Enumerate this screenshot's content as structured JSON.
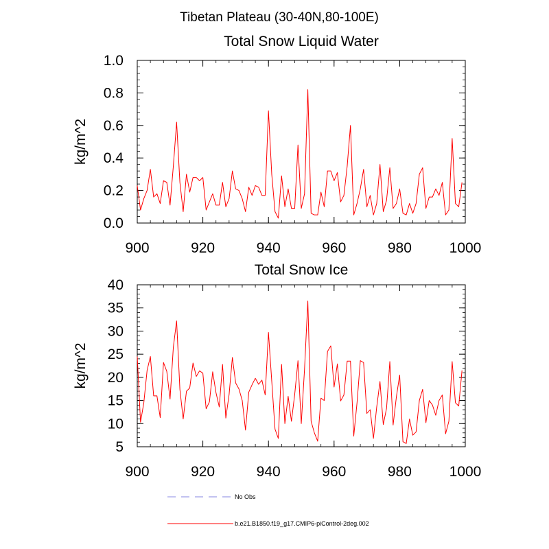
{
  "figure": {
    "title": "Tibetan Plateau (30-40N,80-100E)"
  },
  "legend": {
    "placement": "bottom-center",
    "items": [
      {
        "label": "No Obs",
        "style": "dashed",
        "color": "#9e9ee8"
      },
      {
        "label": "b.e21.B1850.f19_g17.CMIP6-piControl-2deg.002",
        "style": "solid",
        "color": "#ff0000"
      }
    ]
  },
  "chart_data": [
    {
      "type": "line",
      "title": "Total Snow Liquid Water",
      "xlabel": "",
      "ylabel": "kg/m^2",
      "xlim": [
        900,
        1000
      ],
      "ylim": [
        0.0,
        1.0
      ],
      "xticks": [
        900,
        920,
        940,
        960,
        980,
        1000
      ],
      "yticks": [
        0.0,
        0.2,
        0.4,
        0.6,
        0.8,
        1.0
      ],
      "ytick_labels": [
        "0.0",
        "0.2",
        "0.4",
        "0.6",
        "0.8",
        "1.0"
      ],
      "grid": false,
      "series": [
        {
          "name": "b.e21.B1850.f19_g17.CMIP6-piControl-2deg.002",
          "color": "#ff0000",
          "x_start": 900,
          "x_step": 1,
          "values": [
            0.23,
            0.08,
            0.15,
            0.2,
            0.33,
            0.16,
            0.18,
            0.12,
            0.26,
            0.25,
            0.11,
            0.35,
            0.62,
            0.25,
            0.07,
            0.3,
            0.19,
            0.28,
            0.28,
            0.26,
            0.28,
            0.08,
            0.13,
            0.18,
            0.11,
            0.11,
            0.25,
            0.1,
            0.15,
            0.32,
            0.21,
            0.2,
            0.15,
            0.07,
            0.22,
            0.17,
            0.23,
            0.22,
            0.17,
            0.17,
            0.69,
            0.3,
            0.07,
            0.03,
            0.29,
            0.1,
            0.21,
            0.09,
            0.09,
            0.48,
            0.09,
            0.18,
            0.82,
            0.06,
            0.05,
            0.05,
            0.19,
            0.1,
            0.32,
            0.32,
            0.26,
            0.31,
            0.13,
            0.17,
            0.35,
            0.6,
            0.05,
            0.12,
            0.21,
            0.33,
            0.1,
            0.17,
            0.05,
            0.12,
            0.36,
            0.07,
            0.14,
            0.34,
            0.09,
            0.12,
            0.21,
            0.06,
            0.05,
            0.12,
            0.06,
            0.12,
            0.3,
            0.34,
            0.09,
            0.16,
            0.16,
            0.21,
            0.17,
            0.25,
            0.05,
            0.08,
            0.52,
            0.12,
            0.1,
            0.25
          ]
        }
      ]
    },
    {
      "type": "line",
      "title": "Total Snow Ice",
      "xlabel": "",
      "ylabel": "kg/m^2",
      "xlim": [
        900,
        1000
      ],
      "ylim": [
        5,
        40
      ],
      "xticks": [
        900,
        920,
        940,
        960,
        980,
        1000
      ],
      "yticks": [
        5,
        10,
        15,
        20,
        25,
        30,
        35,
        40
      ],
      "ytick_labels": [
        "5",
        "10",
        "15",
        "20",
        "25",
        "30",
        "35",
        "40"
      ],
      "grid": false,
      "series": [
        {
          "name": "b.e21.B1850.f19_g17.CMIP6-piControl-2deg.002",
          "color": "#ff0000",
          "x_start": 900,
          "x_step": 1,
          "values": [
            24.5,
            10.3,
            14.5,
            21.5,
            24.5,
            16.0,
            16.0,
            11.3,
            23.2,
            21.3,
            15.3,
            26.5,
            32.2,
            17.4,
            11.0,
            17.0,
            17.7,
            23.1,
            20.2,
            21.4,
            20.9,
            13.2,
            14.7,
            21.2,
            16.7,
            13.6,
            22.8,
            11.2,
            16.3,
            24.3,
            18.8,
            17.5,
            15.0,
            8.6,
            16.8,
            18.4,
            19.8,
            18.5,
            19.4,
            16.2,
            29.7,
            19.2,
            8.8,
            6.8,
            22.8,
            10.0,
            15.9,
            10.5,
            16.3,
            23.6,
            10.0,
            21.8,
            36.5,
            10.5,
            8.0,
            6.2,
            15.5,
            15.0,
            25.6,
            26.8,
            17.9,
            22.9,
            14.9,
            16.2,
            23.5,
            23.5,
            7.3,
            14.5,
            23.6,
            23.2,
            12.2,
            13.0,
            6.8,
            13.6,
            19.1,
            9.8,
            13.3,
            23.4,
            9.7,
            15.8,
            20.5,
            6.1,
            5.7,
            11.0,
            7.5,
            8.2,
            15.0,
            17.4,
            10.2,
            15.0,
            14.0,
            11.8,
            15.0,
            16.2,
            7.8,
            10.5,
            23.4,
            14.5,
            13.8,
            21.5
          ]
        }
      ]
    }
  ]
}
